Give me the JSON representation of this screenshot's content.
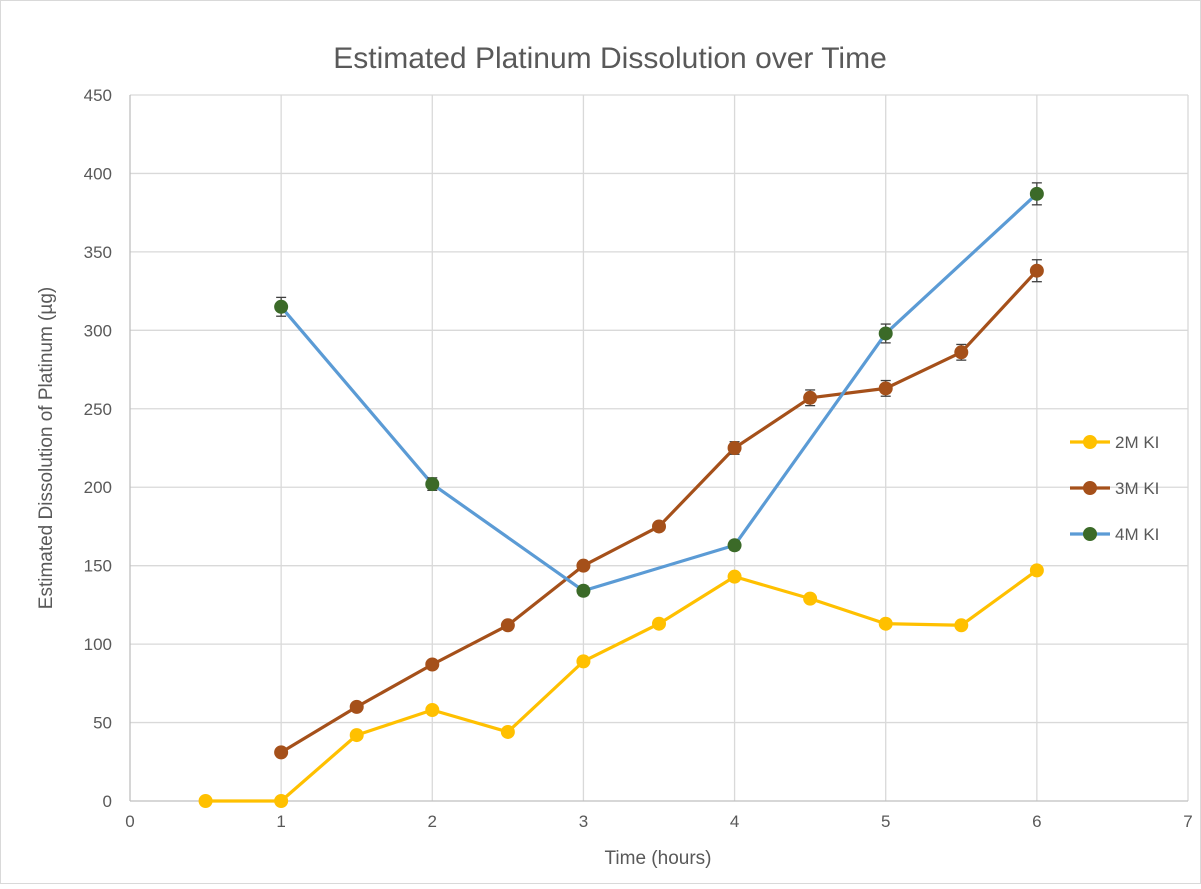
{
  "chart_data": {
    "type": "line",
    "title": "Estimated Platinum Dissolution over Time",
    "xlabel": "Time (hours)",
    "ylabel": "Estimated Dissolution of Platinum (µg)",
    "xlim": [
      0,
      7
    ],
    "ylim": [
      0,
      450
    ],
    "x_ticks": [
      0,
      1,
      2,
      3,
      4,
      5,
      6,
      7
    ],
    "y_ticks": [
      0,
      50,
      100,
      150,
      200,
      250,
      300,
      350,
      400,
      450
    ],
    "grid": true,
    "legend_position": "right",
    "series": [
      {
        "name": "2M KI",
        "line_color": "#FFC000",
        "marker_color": "#FFC000",
        "x": [
          0.5,
          1,
          1.5,
          2,
          2.5,
          3,
          3.5,
          4,
          4.5,
          5,
          5.5,
          6
        ],
        "y": [
          0,
          0,
          42,
          58,
          44,
          89,
          113,
          143,
          129,
          113,
          112,
          147
        ],
        "error": [
          0,
          0,
          0,
          0,
          0,
          0,
          0,
          0,
          0,
          0,
          0,
          0
        ]
      },
      {
        "name": "3M KI",
        "line_color": "#A5501A",
        "marker_color": "#A5501A",
        "x": [
          1,
          1.5,
          2,
          2.5,
          3,
          3.5,
          4,
          4.5,
          5,
          5.5,
          6
        ],
        "y": [
          31,
          60,
          87,
          112,
          150,
          175,
          225,
          257,
          263,
          286,
          338
        ],
        "error": [
          0,
          0,
          0,
          0,
          0,
          0,
          4,
          5,
          5,
          5,
          7
        ]
      },
      {
        "name": "4M KI",
        "line_color": "#5B9BD5",
        "marker_color": "#3B6A28",
        "x": [
          1,
          2,
          3,
          4,
          5,
          6
        ],
        "y": [
          315,
          202,
          134,
          163,
          298,
          387
        ],
        "error": [
          6,
          4,
          3,
          3,
          6,
          7
        ]
      }
    ]
  }
}
